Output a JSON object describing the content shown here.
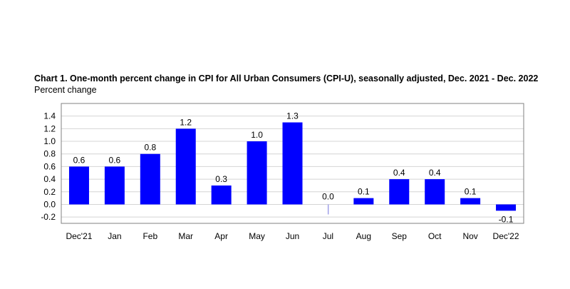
{
  "chart_data": {
    "type": "bar",
    "title": "Chart 1. One-month percent change in CPI for All Urban Consumers (CPI-U), seasonally adjusted, Dec. 2021 - Dec. 2022",
    "ylabel": "Percent change",
    "xlabel": "",
    "categories": [
      "Dec'21",
      "Jan",
      "Feb",
      "Mar",
      "Apr",
      "May",
      "Jun",
      "Jul",
      "Aug",
      "Sep",
      "Oct",
      "Nov",
      "Dec'22"
    ],
    "values": [
      0.6,
      0.6,
      0.8,
      1.2,
      0.3,
      1.0,
      1.3,
      0.0,
      0.1,
      0.4,
      0.4,
      0.1,
      -0.1
    ],
    "data_labels": [
      "0.6",
      "0.6",
      "0.8",
      "1.2",
      "0.3",
      "1.0",
      "1.3",
      "0.0",
      "0.1",
      "0.4",
      "0.4",
      "0.1",
      "-0.1"
    ],
    "ylim": [
      -0.3,
      1.6
    ],
    "yticks": [
      -0.2,
      0.0,
      0.2,
      0.4,
      0.6,
      0.8,
      1.0,
      1.2,
      1.4
    ],
    "ytick_labels": [
      "-0.2",
      "0.0",
      "0.2",
      "0.4",
      "0.6",
      "0.8",
      "1.0",
      "1.2",
      "1.4"
    ],
    "grid": true,
    "legend": "none",
    "bar_color": "#0000ff",
    "zero_bar_color": "#a0a0e8"
  }
}
